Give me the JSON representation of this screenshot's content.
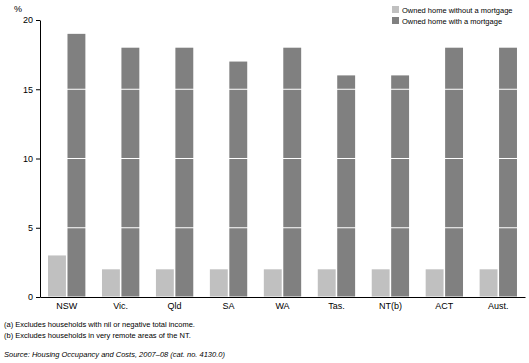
{
  "chart_data": {
    "type": "bar",
    "y_label": "%",
    "categories": [
      "NSW",
      "Vic.",
      "Qld",
      "SA",
      "WA",
      "Tas.",
      "NT(b)",
      "ACT",
      "Aust."
    ],
    "series": [
      {
        "name": "Owned home without a mortgage",
        "color": "#c0c0c0",
        "values": [
          3,
          2,
          2,
          2,
          2,
          2,
          2,
          2,
          2
        ]
      },
      {
        "name": "Owned home with a mortgage",
        "color": "#808080",
        "values": [
          19,
          18,
          18,
          17,
          18,
          16,
          16,
          18,
          18
        ]
      }
    ],
    "ylim": [
      0,
      20
    ],
    "yticks": [
      0,
      5,
      10,
      15,
      20
    ],
    "grid": true,
    "legend": "top-right",
    "notes": [
      "(a) Excludes households with nil or negative total income.",
      "(b) Excludes households in very remote areas of the NT."
    ],
    "source": "Source: Housing Occupancy and Costs, 2007–08 (cat. no. 4130.0)"
  }
}
